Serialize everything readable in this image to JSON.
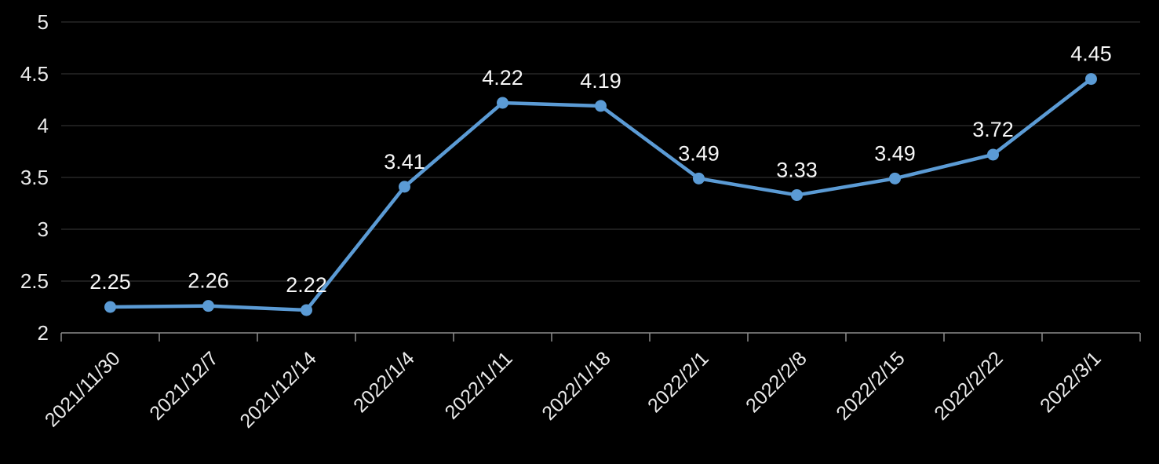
{
  "chart_data": {
    "type": "line",
    "title": "",
    "xlabel": "",
    "ylabel": "",
    "categories": [
      "2021/11/30",
      "2021/12/7",
      "2021/12/14",
      "2022/1/4",
      "2022/1/11",
      "2022/1/18",
      "2022/2/1",
      "2022/2/8",
      "2022/2/15",
      "2022/2/22",
      "2022/3/1"
    ],
    "values": [
      2.25,
      2.26,
      2.22,
      3.41,
      4.22,
      4.19,
      3.49,
      3.33,
      3.49,
      3.72,
      4.45
    ],
    "data_labels": [
      "2.25",
      "2.26",
      "2.22",
      "3.41",
      "4.22",
      "4.19",
      "3.49",
      "3.33",
      "3.49",
      "3.72",
      "4.45"
    ],
    "ylim": [
      2,
      5
    ],
    "yticks": [
      2,
      2.5,
      3,
      3.5,
      4,
      4.5,
      5
    ],
    "ytick_labels": [
      "2",
      "2.5",
      "3",
      "3.5",
      "4",
      "4.5",
      "5"
    ],
    "grid": true,
    "legend": "none",
    "x_label_rotation_deg": -45,
    "markers": "circle",
    "data_labels_position": "above"
  },
  "style": {
    "background_color": "#000000",
    "line_color": "#5B9BD5",
    "marker_color": "#5B9BD5",
    "gridline_color": "#2f2f2f",
    "axis_line_color": "#8c8c8c",
    "tick_label_color": "#eaeaea",
    "data_label_color": "#f7f7f7"
  }
}
